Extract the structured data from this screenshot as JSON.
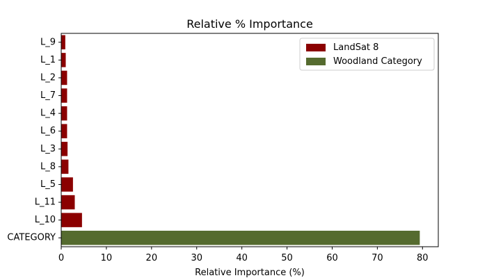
{
  "chart_data": {
    "type": "bar",
    "orientation": "horizontal",
    "title": "Relative % Importance",
    "xlabel": "Relative Importance (%)",
    "ylabel": "",
    "xlim": [
      0,
      83.5
    ],
    "xticks": [
      0,
      10,
      20,
      30,
      40,
      50,
      60,
      70,
      80
    ],
    "grid": false,
    "legend_position": "top-right",
    "categories": [
      "CATEGORY",
      "L_10",
      "L_11",
      "L_5",
      "L_8",
      "L_3",
      "L_6",
      "L_4",
      "L_7",
      "L_2",
      "L_1",
      "L_9"
    ],
    "values": [
      79.4,
      4.6,
      3.0,
      2.6,
      1.6,
      1.4,
      1.3,
      1.3,
      1.3,
      1.3,
      1.0,
      0.9
    ],
    "bar_series": [
      "Woodland Category",
      "LandSat 8",
      "LandSat 8",
      "LandSat 8",
      "LandSat 8",
      "LandSat 8",
      "LandSat 8",
      "LandSat 8",
      "LandSat 8",
      "LandSat 8",
      "LandSat 8",
      "LandSat 8"
    ],
    "series": [
      {
        "name": "LandSat 8",
        "color": "#8b0000"
      },
      {
        "name": "Woodland Category",
        "color": "#556b2f"
      }
    ]
  }
}
